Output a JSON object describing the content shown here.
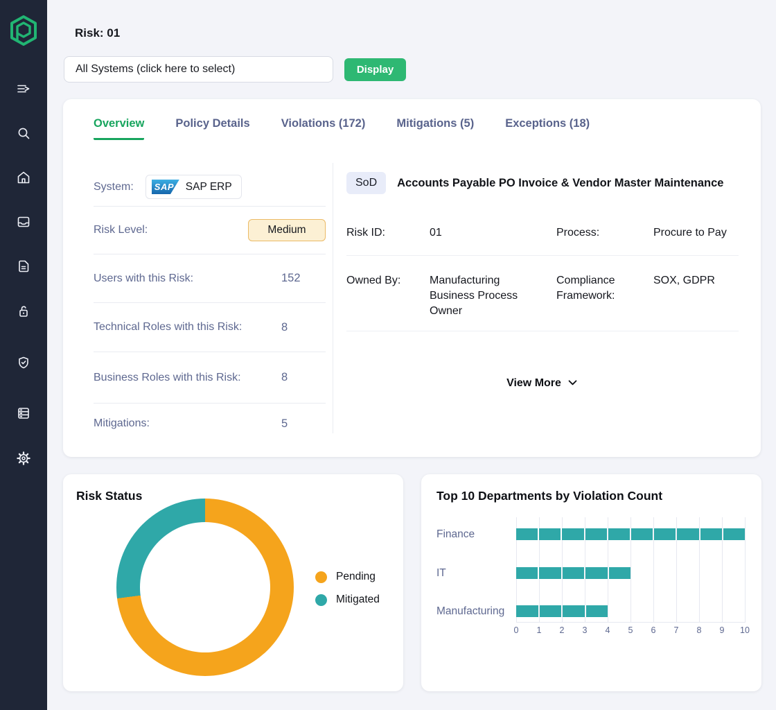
{
  "colors": {
    "sidebar_bg": "#1F2637",
    "page_bg": "#F3F4F9",
    "accent_green": "#2EB873",
    "active_tab_green": "#18A55E",
    "teal": "#2FA8A8",
    "orange": "#F5A41C",
    "label_blue": "#5E6890",
    "medium_badge_bg": "#FCF0D4",
    "medium_badge_border": "#EBBA66",
    "sod_badge_bg": "#E8ECF9"
  },
  "sidebar": {
    "icons": [
      "brand-logo",
      "menu-toggle-icon",
      "search-icon",
      "home-icon",
      "inbox-icon",
      "document-icon",
      "lock-icon",
      "shield-check-icon",
      "server-icon",
      "gear-icon"
    ]
  },
  "header": {
    "title": "Risk: 01",
    "system_select_value": "All Systems (click here to select)",
    "display_button": "Display"
  },
  "tabs": [
    {
      "label": "Overview",
      "active": true
    },
    {
      "label": "Policy Details",
      "active": false
    },
    {
      "label": "Violations (172)",
      "active": false
    },
    {
      "label": "Mitigations (5)",
      "active": false
    },
    {
      "label": "Exceptions (18)",
      "active": false
    }
  ],
  "overview": {
    "system_row": {
      "label": "System:",
      "logo_text": "SAP",
      "value": "SAP ERP"
    },
    "risk_level_row": {
      "label": "Risk Level:",
      "value": "Medium"
    },
    "rows": [
      {
        "label": "Users with this Risk:",
        "value": "152"
      },
      {
        "label": "Technical Roles with this Risk:",
        "value": "8"
      },
      {
        "label": "Business Roles with this Risk:",
        "value": "8"
      },
      {
        "label": "Mitigations:",
        "value": "5"
      }
    ]
  },
  "risk_details": {
    "type_badge": "SoD",
    "title": "Accounts Payable PO Invoice & Vendor Master Maintenance",
    "fields": [
      {
        "label": "Risk ID:",
        "value": "01"
      },
      {
        "label": "Process:",
        "value": "Procure to Pay"
      },
      {
        "label": "Owned By:",
        "value": "Manufacturing Business Process Owner"
      },
      {
        "label": "Compliance Framework:",
        "value": "SOX, GDPR"
      }
    ],
    "view_more_label": "View More",
    "view_more_icon": "chevron-down-icon"
  },
  "chart_data": [
    {
      "type": "pie",
      "subtype": "donut",
      "title": "Risk Status",
      "legend_position": "right",
      "series": [
        {
          "name": "Pending",
          "value": 73,
          "color": "#F5A41C"
        },
        {
          "name": "Mitigated",
          "value": 27,
          "color": "#2FA8A8"
        }
      ],
      "units": "percent"
    },
    {
      "type": "bar",
      "orientation": "horizontal",
      "title": "Top 10 Departments by Violation Count",
      "categories": [
        "Finance",
        "IT",
        "Manufacturing"
      ],
      "values": [
        10,
        5,
        4
      ],
      "xlabel": "",
      "ylabel": "",
      "xlim": [
        0,
        10
      ],
      "x_ticks": [
        "0",
        "1",
        "2",
        "3",
        "4",
        "5",
        "6",
        "7",
        "8",
        "9",
        "10"
      ],
      "grid": true,
      "bar_color": "#2FA8A8",
      "legend": false
    }
  ]
}
